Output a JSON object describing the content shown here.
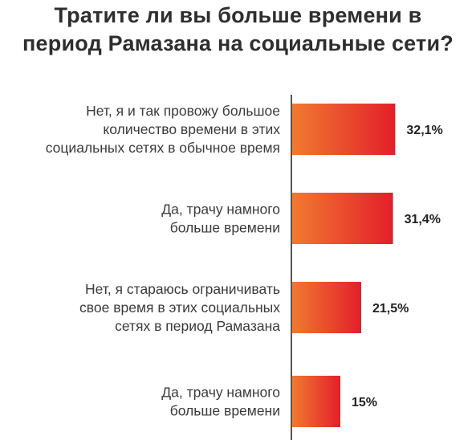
{
  "chart_data": {
    "type": "bar",
    "orientation": "horizontal",
    "title": [
      "Тратите ли вы больше времени в",
      "период Рамазана на социальные сети?"
    ],
    "categories": [
      [
        "Нет, я и так провожу большое",
        "количество времени в этих",
        "социальных сетях в обычное время"
      ],
      [
        "Да, трачу намного",
        "больше времени"
      ],
      [
        "Нет, я стараюсь ограничивать",
        "свое время в этих социальных",
        "сетях в период Рамазана"
      ],
      [
        "Да, трачу намного",
        "больше времени"
      ]
    ],
    "values": [
      32.1,
      31.4,
      21.5,
      15
    ],
    "value_labels": [
      "32,1%",
      "31,4%",
      "21,5%",
      "15%"
    ],
    "xlim": [
      0,
      35
    ],
    "xlabel": "",
    "ylabel": "",
    "grid": false,
    "legend": "none",
    "colors": {
      "bar_gradient_start": "#f07a30",
      "bar_gradient_end": "#e31f2a",
      "axis_line": "#2b2b2b"
    }
  }
}
